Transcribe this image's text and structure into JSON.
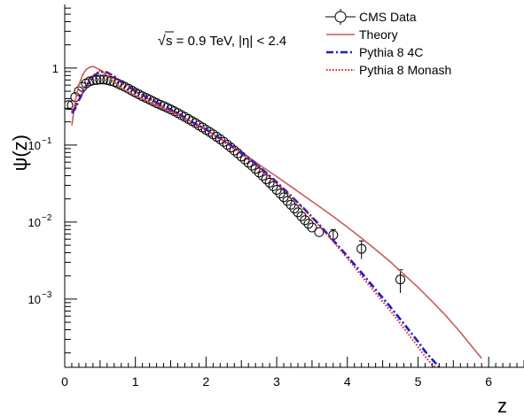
{
  "chart_data": {
    "type": "line",
    "title": "",
    "annotation": {
      "prefix": "√",
      "text": "s = 0.9 TeV, |η| < 2.4"
    },
    "xlabel": "z",
    "ylabel": "ψ(z)",
    "xlim": [
      0,
      6.5
    ],
    "ylim": [
      0.00013,
      6.7
    ],
    "yscale": "log",
    "grid": false,
    "legend_position": "top-right",
    "x_tick_labels": [
      "0",
      "1",
      "2",
      "3",
      "4",
      "5",
      "6"
    ],
    "y_tick_labels": [
      {
        "base": "1",
        "exp": ""
      },
      {
        "base": "10",
        "exp": "−1"
      },
      {
        "base": "10",
        "exp": "−2"
      },
      {
        "base": "10",
        "exp": "−3"
      }
    ],
    "series": [
      {
        "name": "CMS Data",
        "kind": "markers",
        "color": "#000000",
        "x": [
          0.05,
          0.1,
          0.15,
          0.2,
          0.25,
          0.3,
          0.35,
          0.4,
          0.45,
          0.5,
          0.55,
          0.6,
          0.65,
          0.7,
          0.75,
          0.8,
          0.85,
          0.9,
          0.95,
          1.0,
          1.05,
          1.1,
          1.15,
          1.2,
          1.25,
          1.3,
          1.35,
          1.4,
          1.45,
          1.5,
          1.55,
          1.6,
          1.65,
          1.7,
          1.75,
          1.8,
          1.85,
          1.9,
          1.95,
          2.0,
          2.05,
          2.1,
          2.15,
          2.2,
          2.25,
          2.3,
          2.35,
          2.4,
          2.45,
          2.5,
          2.55,
          2.6,
          2.65,
          2.7,
          2.75,
          2.8,
          2.85,
          2.9,
          2.95,
          3.0,
          3.05,
          3.1,
          3.15,
          3.2,
          3.25,
          3.3,
          3.35,
          3.4,
          3.45,
          3.5,
          3.6,
          3.8,
          4.2,
          4.75
        ],
        "y": [
          0.33,
          0.33,
          0.42,
          0.5,
          0.57,
          0.63,
          0.67,
          0.69,
          0.7,
          0.71,
          0.71,
          0.7,
          0.68,
          0.66,
          0.63,
          0.6,
          0.57,
          0.54,
          0.51,
          0.48,
          0.455,
          0.43,
          0.41,
          0.39,
          0.37,
          0.35,
          0.335,
          0.32,
          0.305,
          0.29,
          0.275,
          0.26,
          0.245,
          0.232,
          0.218,
          0.205,
          0.193,
          0.18,
          0.169,
          0.158,
          0.148,
          0.138,
          0.128,
          0.119,
          0.11,
          0.101,
          0.093,
          0.085,
          0.078,
          0.071,
          0.065,
          0.059,
          0.054,
          0.049,
          0.044,
          0.04,
          0.036,
          0.0325,
          0.0293,
          0.0262,
          0.0235,
          0.021,
          0.0188,
          0.0168,
          0.015,
          0.0134,
          0.0119,
          0.0106,
          0.0095,
          0.0085,
          0.0074,
          0.0068,
          0.0045,
          0.0018
        ],
        "y_err": [
          0,
          0,
          0,
          0,
          0,
          0,
          0,
          0,
          0,
          0,
          0,
          0,
          0,
          0,
          0,
          0,
          0,
          0,
          0,
          0,
          0,
          0,
          0,
          0,
          0,
          0,
          0,
          0,
          0,
          0,
          0,
          0,
          0,
          0,
          0,
          0,
          0,
          0,
          0,
          0,
          0,
          0,
          0,
          0,
          0,
          0,
          0,
          0,
          0,
          0,
          0,
          0,
          0,
          0,
          0,
          0,
          0,
          0,
          0,
          0,
          0,
          0,
          0,
          0,
          0,
          0,
          0,
          0,
          0,
          0,
          0,
          0.0012,
          0.0012,
          0.0006
        ]
      },
      {
        "name": "Theory",
        "kind": "line",
        "color": "#c85a5a",
        "x": [
          0.1,
          0.15,
          0.2,
          0.25,
          0.3,
          0.35,
          0.4,
          0.5,
          0.6,
          0.7,
          0.8,
          1.0,
          1.2,
          1.4,
          1.6,
          1.8,
          2.0,
          2.2,
          2.4,
          2.6,
          2.8,
          3.0,
          3.2,
          3.4,
          3.6,
          3.8,
          4.0,
          4.2,
          4.4,
          4.6,
          4.8,
          5.0,
          5.2,
          5.4,
          5.6,
          5.8,
          5.9
        ],
        "y": [
          0.18,
          0.38,
          0.6,
          0.8,
          0.95,
          1.02,
          1.05,
          0.95,
          0.8,
          0.66,
          0.55,
          0.44,
          0.36,
          0.3,
          0.245,
          0.2,
          0.158,
          0.122,
          0.093,
          0.07,
          0.052,
          0.039,
          0.029,
          0.0215,
          0.016,
          0.0118,
          0.0086,
          0.0062,
          0.0044,
          0.0031,
          0.0021,
          0.00142,
          0.00093,
          0.0006,
          0.00037,
          0.00022,
          0.00017
        ]
      },
      {
        "name": "Pythia 8 4C",
        "kind": "dashdot",
        "color": "#1a1ad0",
        "x": [
          0.1,
          0.15,
          0.2,
          0.3,
          0.4,
          0.5,
          0.6,
          0.7,
          0.8,
          1.0,
          1.2,
          1.4,
          1.6,
          1.8,
          2.0,
          2.2,
          2.4,
          2.6,
          2.8,
          3.0,
          3.2,
          3.4,
          3.6,
          3.8,
          4.0,
          4.2,
          4.4,
          4.6,
          4.8,
          5.0,
          5.1,
          5.2,
          5.3
        ],
        "y": [
          0.26,
          0.3,
          0.38,
          0.58,
          0.78,
          0.9,
          0.88,
          0.78,
          0.66,
          0.5,
          0.4,
          0.32,
          0.26,
          0.2,
          0.16,
          0.122,
          0.092,
          0.068,
          0.048,
          0.033,
          0.022,
          0.0145,
          0.0093,
          0.0058,
          0.0036,
          0.0022,
          0.00133,
          0.00081,
          0.00048,
          0.00028,
          0.00021,
          0.000165,
          0.00013
        ]
      },
      {
        "name": "Pythia 8 Monash",
        "kind": "dotted",
        "color": "#e01a1a",
        "x": [
          0.1,
          0.15,
          0.2,
          0.3,
          0.4,
          0.5,
          0.6,
          0.7,
          0.8,
          1.0,
          1.2,
          1.4,
          1.6,
          1.8,
          2.0,
          2.2,
          2.4,
          2.6,
          2.8,
          3.0,
          3.2,
          3.4,
          3.6,
          3.8,
          4.0,
          4.2,
          4.4,
          4.6,
          4.8,
          5.0,
          5.1,
          5.2,
          5.25
        ],
        "y": [
          0.27,
          0.32,
          0.4,
          0.6,
          0.8,
          0.92,
          0.88,
          0.77,
          0.65,
          0.49,
          0.39,
          0.31,
          0.25,
          0.195,
          0.155,
          0.118,
          0.088,
          0.065,
          0.046,
          0.032,
          0.0215,
          0.0142,
          0.009,
          0.0056,
          0.0034,
          0.002,
          0.0012,
          0.00072,
          0.00042,
          0.00024,
          0.00018,
          0.00014,
          0.00013
        ]
      }
    ]
  }
}
